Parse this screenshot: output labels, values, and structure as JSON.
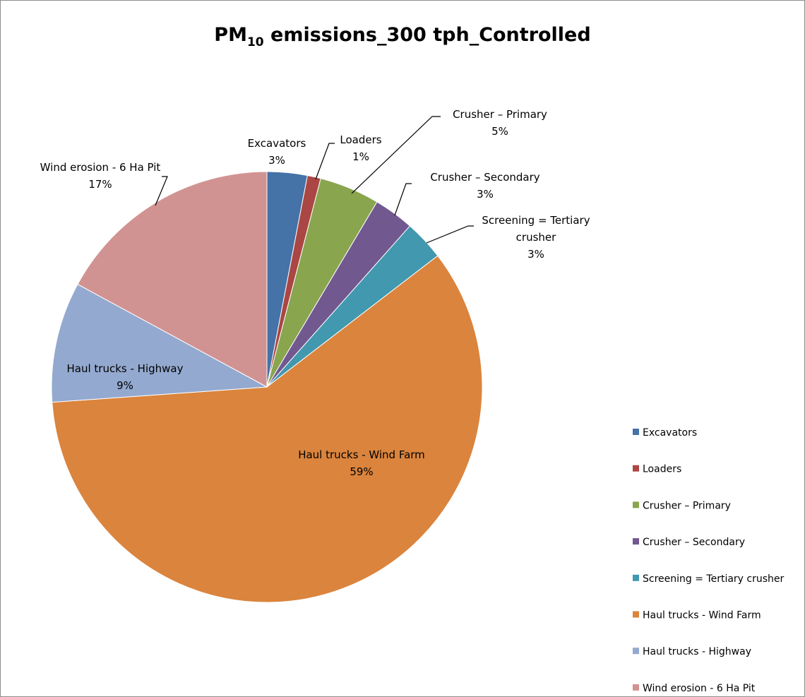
{
  "chart_data": {
    "type": "pie",
    "title": {
      "prefix": "PM",
      "subscript": "10",
      "suffix": " emissions_300 tph_Controlled"
    },
    "slices": [
      {
        "name": "Excavators",
        "value": 3,
        "label": [
          "Excavators",
          "3%"
        ],
        "color": "#4572A7"
      },
      {
        "name": "Loaders",
        "value": 1,
        "label": [
          "Loaders",
          "1%"
        ],
        "color": "#AA4643"
      },
      {
        "name": "Crusher – Primary",
        "value": 4.5,
        "label": [
          "Crusher – Primary",
          "5%"
        ],
        "color": "#89A54E"
      },
      {
        "name": "Crusher – Secondary",
        "value": 3,
        "label": [
          "Crusher – Secondary",
          "3%"
        ],
        "color": "#71588F"
      },
      {
        "name": "Screening = Tertiary crusher",
        "value": 3,
        "label": [
          "Screening = Tertiary",
          "crusher",
          "3%"
        ],
        "color": "#4198AF"
      },
      {
        "name": "Haul trucks - Wind Farm",
        "value": 59,
        "label": [
          "Haul trucks - Wind Farm",
          "59%"
        ],
        "color": "#DB843D"
      },
      {
        "name": "Haul trucks - Highway",
        "value": 9,
        "label": [
          "Haul trucks - Highway",
          "9%"
        ],
        "color": "#93A9CF"
      },
      {
        "name": "Wind erosion - 6 Ha Pit",
        "value": 17,
        "label": [
          "Wind erosion - 6 Ha Pit",
          "17%"
        ],
        "color": "#D19392"
      }
    ],
    "legend_position": "right"
  }
}
